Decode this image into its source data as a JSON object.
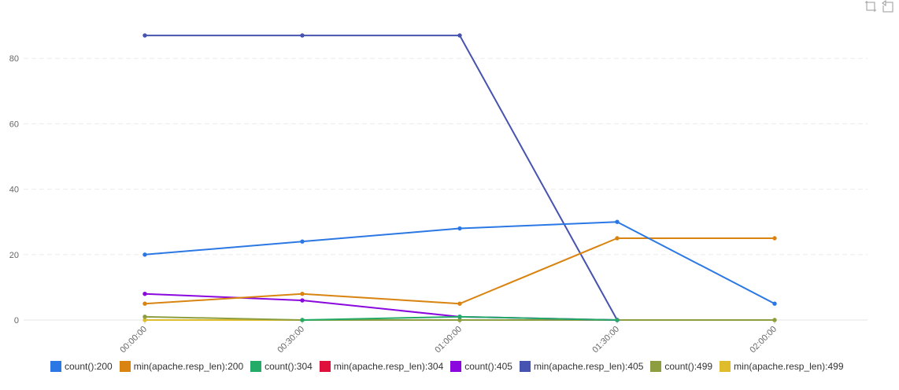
{
  "toolbox": {
    "zoom_icon": "data-zoom-icon",
    "restore_icon": "restore-icon"
  },
  "chart_data": {
    "type": "line",
    "categories": [
      "00:00:00",
      "00:30:00",
      "01:00:00",
      "01:30:00",
      "02:00:00"
    ],
    "ylim": [
      0,
      90
    ],
    "yticks": [
      0,
      20,
      40,
      60,
      80
    ],
    "grid": true,
    "legend_position": "bottom",
    "series": [
      {
        "name": "count():200",
        "color": "#2b78e4",
        "values": [
          20,
          24,
          28,
          30,
          5
        ]
      },
      {
        "name": "min(apache.resp_len):200",
        "color": "#d98410",
        "values": [
          5,
          8,
          5,
          25,
          25
        ]
      },
      {
        "name": "count():304",
        "color": "#23ab67",
        "values": [
          null,
          0,
          1,
          0,
          null
        ]
      },
      {
        "name": "min(apache.resp_len):304",
        "color": "#e0103c",
        "values": [
          null,
          null,
          null,
          null,
          null
        ]
      },
      {
        "name": "count():405",
        "color": "#8a07de",
        "values": [
          8,
          6,
          1,
          0,
          null
        ]
      },
      {
        "name": "min(apache.resp_len):405",
        "color": "#4653b0",
        "values": [
          87,
          87,
          87,
          0,
          null
        ]
      },
      {
        "name": "count():499",
        "color": "#8d9e41",
        "values": [
          1,
          0,
          0,
          0,
          0
        ]
      },
      {
        "name": "min(apache.resp_len):499",
        "color": "#dfbc2b",
        "values": [
          0,
          0,
          0,
          0,
          0
        ]
      }
    ]
  }
}
